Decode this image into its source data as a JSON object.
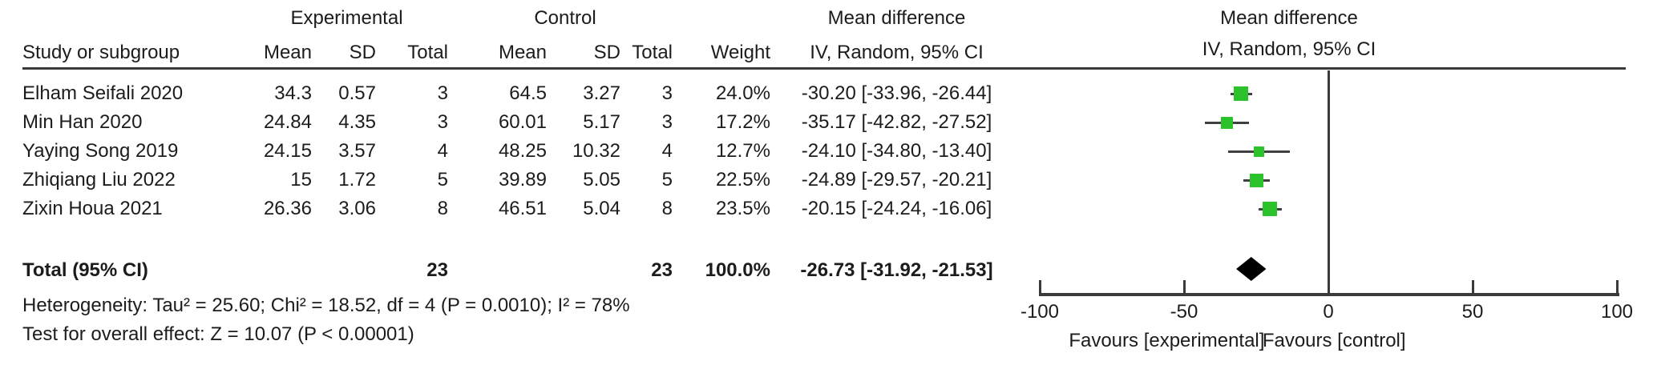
{
  "meta": {
    "background": "#ffffff",
    "text_color": "#1c1c1c",
    "line_color": "#3a3a3a",
    "marker_green": "#2cc22c",
    "diamond_black": "#000000"
  },
  "header": {
    "group_experimental": "Experimental",
    "group_control": "Control",
    "col_study": "Study or subgroup",
    "col_mean_exp": "Mean",
    "col_sd_exp": "SD",
    "col_total_exp": "Total",
    "col_mean_ctl": "Mean",
    "col_sd_ctl": "SD",
    "col_total_ctl": "Total",
    "col_weight": "Weight",
    "md_title": "Mean difference",
    "md_subtitle": "IV, Random, 95% CI",
    "plot_title": "Mean difference",
    "plot_subtitle": "IV, Random, 95% CI"
  },
  "chart_data": {
    "type": "forest",
    "effect_measure": "Mean difference, IV, Random, 95% CI",
    "x_axis": {
      "xlim": [
        -100,
        100
      ],
      "ticks": [
        -100,
        -50,
        0,
        50,
        100
      ],
      "tick_labels": [
        "-100",
        "-50",
        "0",
        "50",
        "100"
      ],
      "favours_left": "Favours [experimental]",
      "favours_right": "Favours [control]"
    },
    "studies": [
      {
        "name": "Elham Seifali 2020",
        "exp_mean": "34.3",
        "exp_sd": "0.57",
        "exp_total": "3",
        "ctl_mean": "64.5",
        "ctl_sd": "3.27",
        "ctl_total": "3",
        "weight": "24.0%",
        "weight_pct": 24.0,
        "md": -30.2,
        "ci_low": -33.96,
        "ci_high": -26.44,
        "md_text": "-30.20 [-33.96, -26.44]"
      },
      {
        "name": "Min Han 2020",
        "exp_mean": "24.84",
        "exp_sd": "4.35",
        "exp_total": "3",
        "ctl_mean": "60.01",
        "ctl_sd": "5.17",
        "ctl_total": "3",
        "weight": "17.2%",
        "weight_pct": 17.2,
        "md": -35.17,
        "ci_low": -42.82,
        "ci_high": -27.52,
        "md_text": "-35.17 [-42.82, -27.52]"
      },
      {
        "name": "Yaying Song 2019",
        "exp_mean": "24.15",
        "exp_sd": "3.57",
        "exp_total": "4",
        "ctl_mean": "48.25",
        "ctl_sd": "10.32",
        "ctl_total": "4",
        "weight": "12.7%",
        "weight_pct": 12.7,
        "md": -24.1,
        "ci_low": -34.8,
        "ci_high": -13.4,
        "md_text": "-24.10 [-34.80, -13.40]"
      },
      {
        "name": "Zhiqiang Liu 2022",
        "exp_mean": "15",
        "exp_sd": "1.72",
        "exp_total": "5",
        "ctl_mean": "39.89",
        "ctl_sd": "5.05",
        "ctl_total": "5",
        "weight": "22.5%",
        "weight_pct": 22.5,
        "md": -24.89,
        "ci_low": -29.57,
        "ci_high": -20.21,
        "md_text": "-24.89 [-29.57, -20.21]"
      },
      {
        "name": "Zixin Houa 2021",
        "exp_mean": "26.36",
        "exp_sd": "3.06",
        "exp_total": "8",
        "ctl_mean": "46.51",
        "ctl_sd": "5.04",
        "ctl_total": "8",
        "weight": "23.5%",
        "weight_pct": 23.5,
        "md": -20.15,
        "ci_low": -24.24,
        "ci_high": -16.06,
        "md_text": "-20.15 [-24.24, -16.06]"
      }
    ],
    "total": {
      "label": "Total (95% CI)",
      "exp_total": "23",
      "ctl_total": "23",
      "weight": "100.0%",
      "md": -26.73,
      "ci_low": -31.92,
      "ci_high": -21.53,
      "md_text": "-26.73 [-31.92, -21.53]"
    },
    "heterogeneity": "Heterogeneity: Tau² = 25.60; Chi² = 18.52, df = 4 (P = 0.0010); I² = 78%",
    "overall_effect": "Test for overall effect: Z = 10.07 (P < 0.00001)"
  }
}
